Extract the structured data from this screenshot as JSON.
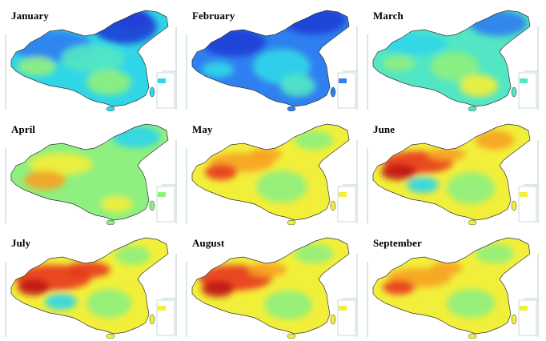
{
  "figure": {
    "panels": [
      {
        "month": "January",
        "palette": "cold"
      },
      {
        "month": "February",
        "palette": "coldest"
      },
      {
        "month": "March",
        "palette": "cool"
      },
      {
        "month": "April",
        "palette": "mild"
      },
      {
        "month": "May",
        "palette": "warm"
      },
      {
        "month": "June",
        "palette": "hot"
      },
      {
        "month": "July",
        "palette": "hottest"
      },
      {
        "month": "August",
        "palette": "hottest2"
      },
      {
        "month": "September",
        "palette": "warm2"
      }
    ],
    "colors": {
      "dark_blue": "#1f3fd6",
      "blue": "#2f7ff0",
      "cyan": "#2fd6e8",
      "teal": "#52e6c4",
      "green": "#8ef07e",
      "yellow": "#f2ef3a",
      "orange": "#f7a324",
      "red": "#e83a1c",
      "dark_red": "#c01414",
      "outline": "#333333",
      "neighbor_line": "#a8c0c8"
    }
  }
}
